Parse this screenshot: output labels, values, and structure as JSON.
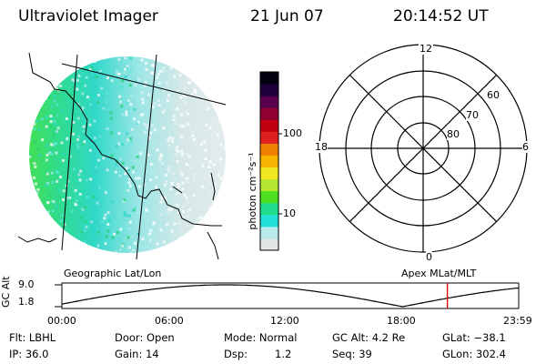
{
  "header": {
    "title": "Ultraviolet Imager",
    "date": "21 Jun 07",
    "time": "20:14:52 UT"
  },
  "colorbar": {
    "unit_label": "photon cm⁻²s⁻¹",
    "tick_100": "100",
    "tick_10": "10",
    "colors": [
      "#e0e6e6",
      "#b8eaea",
      "#20e0d8",
      "#20dc8c",
      "#4ce020",
      "#b4e830",
      "#f0e820",
      "#f4b400",
      "#f08000",
      "#e02020",
      "#c00010",
      "#900030",
      "#5a0050",
      "#20003a",
      "#000010"
    ]
  },
  "polar": {
    "mlt_12": "12",
    "mlt_18": "18",
    "mlt_6": "6",
    "mlt_0": "0",
    "lat_60": "60",
    "lat_70": "70",
    "lat_80": "80"
  },
  "labels": {
    "geo": "Geographic Lat/Lon",
    "apex": "Apex MLat/MLT"
  },
  "alt_plot": {
    "axis_label": "GC Alt",
    "y_top": "9.0",
    "y_bottom": "1.8",
    "x_ticks": [
      "00:00",
      "06:00",
      "12:00",
      "18:00",
      "23:59"
    ],
    "marker_time_hours": 20.25,
    "marker_color": "#e00000"
  },
  "info": {
    "filter": "Flt: LBHL",
    "ip": "IP: 36.0",
    "door": "Door: Open",
    "gain": "Gain: 14",
    "mode": "Mode: Normal",
    "dsp_label": "Dsp:",
    "dsp_value": "1.2",
    "gc_alt": "GC Alt: 4.2 Re",
    "seq": "Seq: 39",
    "glat": "GLat: −38.1",
    "glon": "GLon: 302.4"
  }
}
